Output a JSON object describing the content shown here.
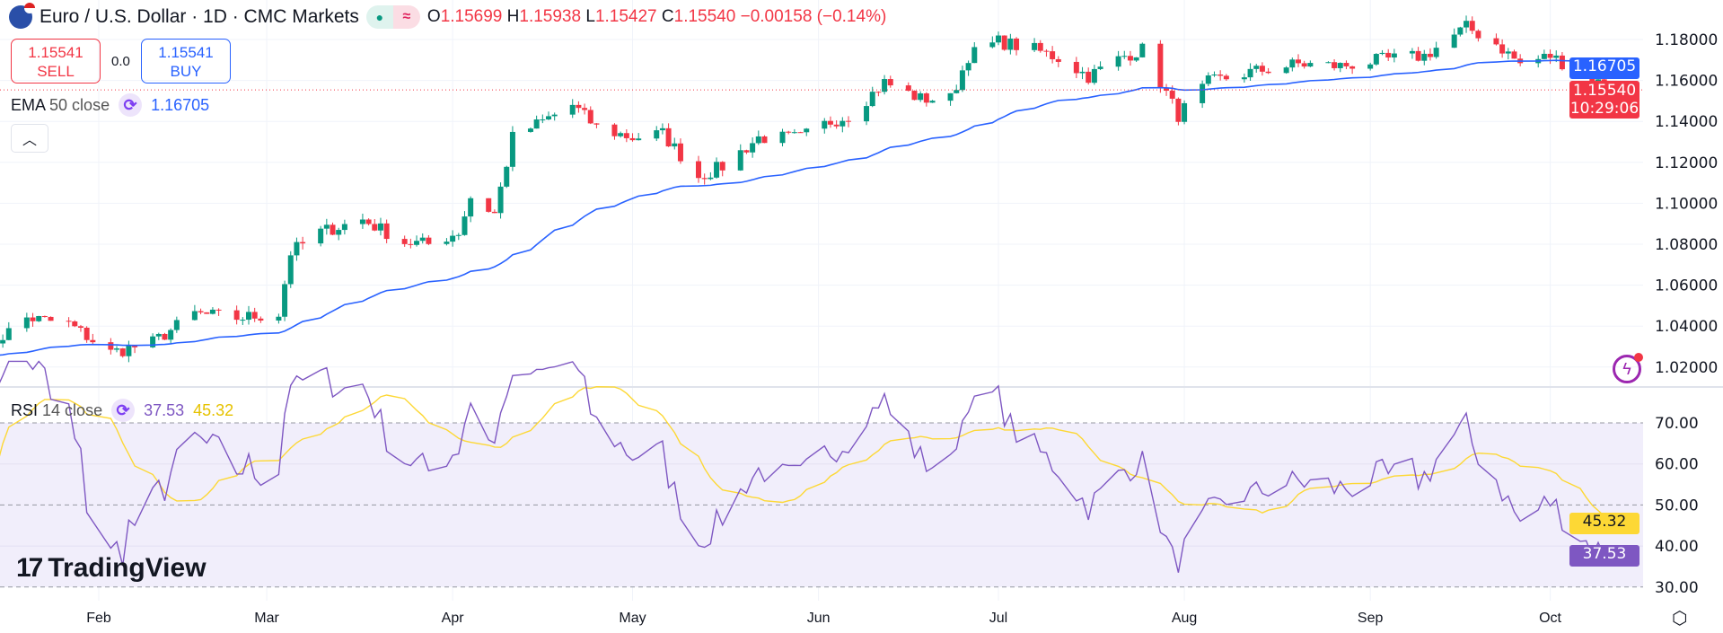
{
  "header": {
    "symbol_title": "Euro / U.S. Dollar · 1D · CMC Markets",
    "status_icons": [
      "market-open-dot",
      "delayed-wave"
    ],
    "ohlc": {
      "o_label": "O",
      "o": "1.15699",
      "h_label": "H",
      "h": "1.15938",
      "l_label": "L",
      "l": "1.15427",
      "c_label": "C",
      "c": "1.15540",
      "change": "−0.00158 (−0.14%)"
    }
  },
  "trade": {
    "sell_price": "1.15541",
    "sell_label": "SELL",
    "spread": "0.0",
    "buy_price": "1.15541",
    "buy_label": "BUY"
  },
  "ema_legend": {
    "name": "EMA",
    "params": "50 close",
    "value": "1.16705"
  },
  "rsi_legend": {
    "name": "RSI",
    "params": "14 close",
    "value": "37.53",
    "ma_value": "45.32"
  },
  "price_tags": {
    "ema": "1.16705",
    "last": "1.15540",
    "countdown": "10:29:06",
    "rsi": "37.53",
    "rsi_ma": "45.32"
  },
  "logo": "TradingView",
  "colors": {
    "up": "#089981",
    "down": "#f23645",
    "ema": "#2962ff",
    "rsi": "#7e57c2",
    "rsi_ma": "#fdd835",
    "rsi_band": "#f1eefb"
  },
  "chart_data": {
    "type": "candlestick",
    "title": "Euro / U.S. Dollar · 1D · CMC Markets",
    "price_axis": {
      "ticks": [
        "1.18000",
        "1.16000",
        "1.14000",
        "1.12000",
        "1.10000",
        "1.08000",
        "1.06000",
        "1.04000",
        "1.02000"
      ],
      "range": [
        1.012,
        1.2
      ]
    },
    "rsi_axis": {
      "ticks": [
        "70.00",
        "60.00",
        "50.00",
        "40.00",
        "30.00"
      ],
      "band": [
        30,
        70
      ],
      "midline": 50
    },
    "time_axis": {
      "ticks": [
        "Feb",
        "Mar",
        "Apr",
        "May",
        "Jun",
        "Jul",
        "Aug",
        "Sep",
        "Oct"
      ]
    },
    "approx_close_path": [
      [
        "2025-01-13",
        1.0286
      ],
      [
        "2025-01-20",
        1.044
      ],
      [
        "2025-01-27",
        1.041
      ],
      [
        "2025-02-03",
        1.027
      ],
      [
        "2025-02-10",
        1.032
      ],
      [
        "2025-02-17",
        1.046
      ],
      [
        "2025-02-24",
        1.044
      ],
      [
        "2025-03-03",
        1.046
      ],
      [
        "2025-03-05",
        1.076
      ],
      [
        "2025-03-10",
        1.086
      ],
      [
        "2025-03-17",
        1.092
      ],
      [
        "2025-03-24",
        1.081
      ],
      [
        "2025-03-28",
        1.08
      ],
      [
        "2025-04-02",
        1.086
      ],
      [
        "2025-04-04",
        1.103
      ],
      [
        "2025-04-08",
        1.095
      ],
      [
        "2025-04-11",
        1.132
      ],
      [
        "2025-04-21",
        1.148
      ],
      [
        "2025-04-25",
        1.137
      ],
      [
        "2025-05-01",
        1.132
      ],
      [
        "2025-05-06",
        1.134
      ],
      [
        "2025-05-12",
        1.113
      ],
      [
        "2025-05-16",
        1.118
      ],
      [
        "2025-05-22",
        1.132
      ],
      [
        "2025-05-29",
        1.132
      ],
      [
        "2025-06-03",
        1.14
      ],
      [
        "2025-06-06",
        1.143
      ],
      [
        "2025-06-12",
        1.159
      ],
      [
        "2025-06-18",
        1.151
      ],
      [
        "2025-06-23",
        1.151
      ],
      [
        "2025-06-26",
        1.172
      ],
      [
        "2025-07-01",
        1.179
      ],
      [
        "2025-07-07",
        1.175
      ],
      [
        "2025-07-11",
        1.171
      ],
      [
        "2025-07-16",
        1.162
      ],
      [
        "2025-07-22",
        1.172
      ],
      [
        "2025-07-25",
        1.175
      ],
      [
        "2025-07-28",
        1.159
      ],
      [
        "2025-07-31",
        1.143
      ],
      [
        "2025-08-05",
        1.159
      ],
      [
        "2025-08-12",
        1.164
      ],
      [
        "2025-08-20",
        1.168
      ],
      [
        "2025-08-27",
        1.167
      ],
      [
        "2025-09-03",
        1.17
      ],
      [
        "2025-09-10",
        1.172
      ],
      [
        "2025-09-17",
        1.186
      ],
      [
        "2025-09-22",
        1.178
      ],
      [
        "2025-09-26",
        1.168
      ],
      [
        "2025-10-01",
        1.172
      ],
      [
        "2025-10-06",
        1.164
      ],
      [
        "2025-10-09",
        1.159
      ],
      [
        "2025-10-14",
        1.1554
      ]
    ],
    "series": [
      {
        "name": "EMA 50 close",
        "last": 1.16705
      },
      {
        "name": "RSI 14 close",
        "last": 37.53
      },
      {
        "name": "RSI MA",
        "last": 45.32
      }
    ]
  }
}
